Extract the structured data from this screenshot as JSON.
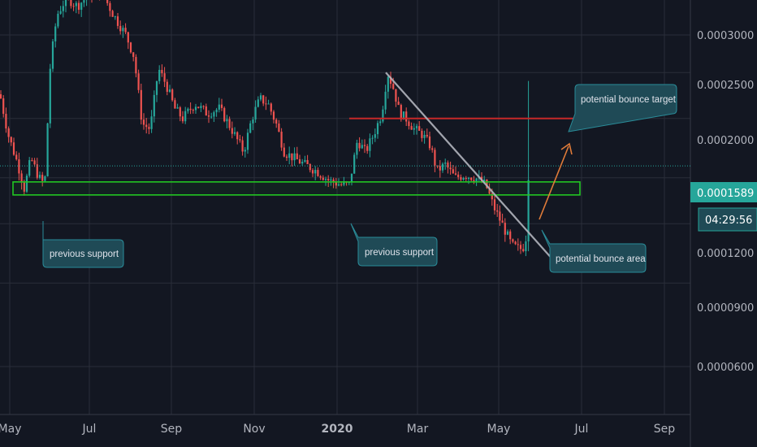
{
  "chart_data": {
    "type": "candlestick",
    "y_axis": {
      "scale": "log",
      "ticks": [
        "0.0003000",
        "0.0002500",
        "0.0002000",
        "0.0001200",
        "0.0000900",
        "0.0000600"
      ],
      "range": [
        4.6e-05,
        0.00038
      ]
    },
    "x_axis": {
      "ticks": [
        "May",
        "Jul",
        "Sep",
        "Nov",
        "2020",
        "Mar",
        "May",
        "Jul",
        "Sep"
      ]
    },
    "last_price": "0.0001589",
    "countdown": "04:29:56",
    "price_path": [
      [
        0,
        0.000225
      ],
      [
        10,
        0.000185
      ],
      [
        22,
        0.00016
      ],
      [
        30,
        0.000142
      ],
      [
        38,
        0.000165
      ],
      [
        48,
        0.00015
      ],
      [
        55,
        0.000145
      ],
      [
        62,
        0.00026
      ],
      [
        70,
        0.00033
      ],
      [
        82,
        0.00036
      ],
      [
        95,
        0.000345
      ],
      [
        110,
        0.000365
      ],
      [
        125,
        0.00037
      ],
      [
        140,
        0.00033
      ],
      [
        155,
        0.0003
      ],
      [
        165,
        0.00027
      ],
      [
        175,
        0.000195
      ],
      [
        185,
        0.00019
      ],
      [
        195,
        0.000255
      ],
      [
        205,
        0.000235
      ],
      [
        215,
        0.00021
      ],
      [
        225,
        0.0002
      ],
      [
        240,
        0.000215
      ],
      [
        255,
        0.000205
      ],
      [
        270,
        0.00021
      ],
      [
        285,
        0.00019
      ],
      [
        300,
        0.00017
      ],
      [
        310,
        0.0002
      ],
      [
        320,
        0.00022
      ],
      [
        330,
        0.000215
      ],
      [
        340,
        0.000195
      ],
      [
        350,
        0.00017
      ],
      [
        362,
        0.000165
      ],
      [
        375,
        0.00016
      ],
      [
        390,
        0.000155
      ],
      [
        405,
        0.000148
      ],
      [
        420,
        0.000145
      ],
      [
        430,
        0.000145
      ],
      [
        440,
        0.00018
      ],
      [
        450,
        0.00017
      ],
      [
        460,
        0.000185
      ],
      [
        470,
        0.000205
      ],
      [
        477,
        0.00025
      ],
      [
        485,
        0.00023
      ],
      [
        492,
        0.000205
      ],
      [
        500,
        0.0002
      ],
      [
        510,
        0.00019
      ],
      [
        520,
        0.000185
      ],
      [
        530,
        0.000175
      ],
      [
        538,
        0.000155
      ],
      [
        548,
        0.00016
      ],
      [
        560,
        0.00015
      ],
      [
        572,
        0.000152
      ],
      [
        585,
        0.00015
      ],
      [
        598,
        0.000145
      ],
      [
        608,
        0.00013
      ],
      [
        620,
        0.000118
      ],
      [
        630,
        0.000108
      ],
      [
        640,
        0.000106
      ],
      [
        647,
        0.000108
      ],
      [
        651,
        0.000158
      ]
    ],
    "spike_high": 0.00024,
    "annotations": {
      "support_zone": {
        "low": 0.000138,
        "high": 0.000147
      },
      "target_level": 0.0002,
      "trendline": [
        [
          475,
          0.00025
        ],
        [
          678,
          0.000102
        ]
      ],
      "callouts": [
        {
          "text": "previous support"
        },
        {
          "text": "previous support"
        },
        {
          "text": "potential bounce area"
        },
        {
          "text": "potential bounce target"
        }
      ]
    }
  },
  "colors": {
    "background": "#131722",
    "grid": "#2a2e39",
    "up": "#26a69a",
    "down": "#ef5350",
    "support_box": "#22c722",
    "target_line": "#c62828",
    "trendline": "#b2b5be",
    "arrow": "#e07b39",
    "callout_fill": "#1f4a56",
    "callout_stroke": "#2a8c99",
    "price_tag": "#26a69a"
  }
}
